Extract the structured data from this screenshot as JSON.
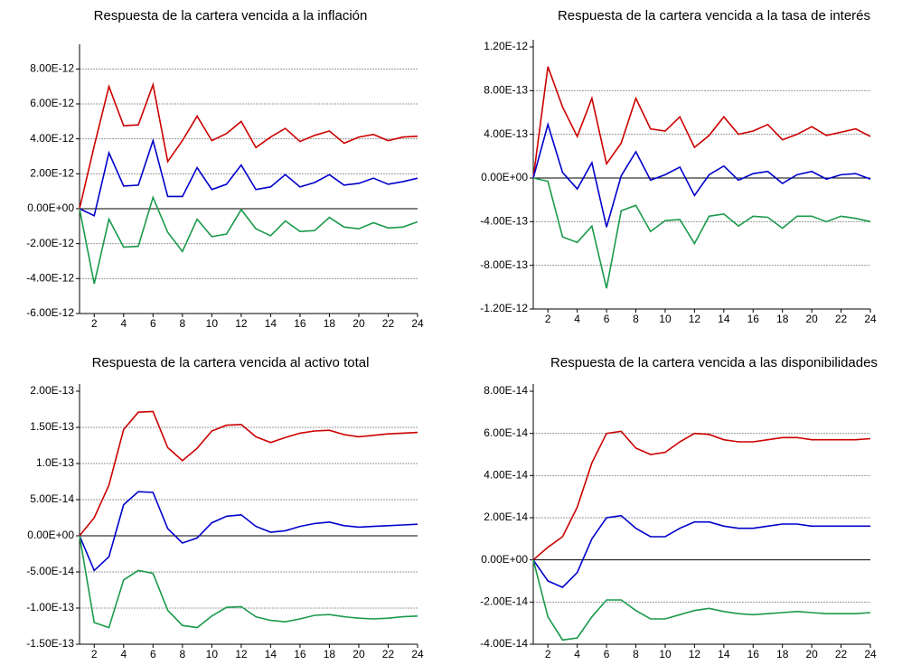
{
  "chart_data": [
    {
      "type": "line",
      "title": "Respuesta de la cartera vencida a la inflación",
      "x": [
        1,
        2,
        3,
        4,
        5,
        6,
        7,
        8,
        9,
        10,
        11,
        12,
        13,
        14,
        15,
        16,
        17,
        18,
        19,
        20,
        21,
        22,
        23,
        24
      ],
      "xlim": [
        1,
        24
      ],
      "xticks": [
        2,
        4,
        6,
        8,
        10,
        12,
        14,
        16,
        18,
        20,
        22,
        24
      ],
      "ylim": [
        -6e-12,
        9e-12
      ],
      "yticks": [
        {
          "value": -6e-12,
          "label": "-6.00E-12"
        },
        {
          "value": -4e-12,
          "label": "-4.00E-12"
        },
        {
          "value": -2e-12,
          "label": "-2.00E-12"
        },
        {
          "value": 0,
          "label": "0.00E+00"
        },
        {
          "value": 2e-12,
          "label": "2.00E-12"
        },
        {
          "value": 4e-12,
          "label": "4.00E-12"
        },
        {
          "value": 6e-12,
          "label": "6.00E-12"
        },
        {
          "value": 8e-12,
          "label": "8.00E-12"
        }
      ],
      "grid": true,
      "series": [
        {
          "color": "#cc0000",
          "values": [
            0,
            3.6e-12,
            7e-12,
            4.75e-12,
            4.8e-12,
            7.1e-12,
            2.7e-12,
            3.9e-12,
            5.3e-12,
            3.9e-12,
            4.3e-12,
            5e-12,
            3.5e-12,
            4.1e-12,
            4.6e-12,
            3.85e-12,
            4.2e-12,
            4.45e-12,
            3.75e-12,
            4.1e-12,
            4.25e-12,
            3.9e-12,
            4.1e-12,
            4.15e-12
          ]
        },
        {
          "color": "#0000cc",
          "values": [
            0,
            -4e-13,
            3.2e-12,
            1.3e-12,
            1.35e-12,
            3.9e-12,
            7e-13,
            7e-13,
            2.35e-12,
            1.1e-12,
            1.4e-12,
            2.5e-12,
            1.1e-12,
            1.25e-12,
            1.95e-12,
            1.25e-12,
            1.5e-12,
            1.95e-12,
            1.35e-12,
            1.45e-12,
            1.75e-12,
            1.4e-12,
            1.55e-12,
            1.75e-12
          ]
        },
        {
          "color": "#1a9a4a",
          "values": [
            0,
            -4.3e-12,
            -6e-13,
            -2.2e-12,
            -2.15e-12,
            6.5e-13,
            -1.35e-12,
            -2.45e-12,
            -6e-13,
            -1.6e-12,
            -1.45e-12,
            -5e-14,
            -1.15e-12,
            -1.55e-12,
            -7e-13,
            -1.3e-12,
            -1.25e-12,
            -5e-13,
            -1.05e-12,
            -1.15e-12,
            -8e-13,
            -1.1e-12,
            -1.05e-12,
            -7.5e-13
          ]
        }
      ]
    },
    {
      "type": "line",
      "title": "Respuesta de la cartera vencida a la tasa de interés",
      "x": [
        1,
        2,
        3,
        4,
        5,
        6,
        7,
        8,
        9,
        10,
        11,
        12,
        13,
        14,
        15,
        16,
        17,
        18,
        19,
        20,
        21,
        22,
        23,
        24
      ],
      "xlim": [
        1,
        24
      ],
      "xticks": [
        2,
        4,
        6,
        8,
        10,
        12,
        14,
        16,
        18,
        20,
        22,
        24
      ],
      "ylim": [
        -1.2e-12,
        1.2e-12
      ],
      "yticks": [
        {
          "value": -1.2e-12,
          "label": "-1.20E-12"
        },
        {
          "value": -8e-13,
          "label": "-8.00E-13"
        },
        {
          "value": -4e-13,
          "label": "-4.00E-13"
        },
        {
          "value": 0,
          "label": "0.00E+00"
        },
        {
          "value": 4e-13,
          "label": "4.00E-13"
        },
        {
          "value": 8e-13,
          "label": "8.00E-13"
        },
        {
          "value": 1.2e-12,
          "label": "1.20E-12"
        }
      ],
      "grid": true,
      "series": [
        {
          "color": "#cc0000",
          "values": [
            0,
            1.02e-12,
            6.5e-13,
            3.8e-13,
            7.3e-13,
            1.3e-13,
            3.2e-13,
            7.3e-13,
            4.5e-13,
            4.3e-13,
            5.6e-13,
            2.8e-13,
            3.9e-13,
            5.6e-13,
            4e-13,
            4.3e-13,
            4.9e-13,
            3.5e-13,
            4e-13,
            4.7e-13,
            3.9e-13,
            4.2e-13,
            4.5e-13,
            3.8e-13
          ]
        },
        {
          "color": "#0000cc",
          "values": [
            0,
            4.9e-13,
            5e-14,
            -1e-13,
            1.4e-13,
            -4.5e-13,
            2e-14,
            2.4e-13,
            -2e-14,
            3e-14,
            1e-13,
            -1.6e-13,
            3e-14,
            1.1e-13,
            -2e-14,
            4e-14,
            6e-14,
            -5e-14,
            3e-14,
            6e-14,
            -1e-14,
            3e-14,
            4e-14,
            -1e-14
          ]
        },
        {
          "color": "#1a9a4a",
          "values": [
            0,
            -3e-14,
            -5.4e-13,
            -5.9e-13,
            -4.4e-13,
            -1.01e-12,
            -3e-13,
            -2.5e-13,
            -4.9e-13,
            -3.9e-13,
            -3.8e-13,
            -6e-13,
            -3.5e-13,
            -3.3e-13,
            -4.4e-13,
            -3.5e-13,
            -3.6e-13,
            -4.6e-13,
            -3.5e-13,
            -3.5e-13,
            -4e-13,
            -3.5e-13,
            -3.7e-13,
            -4e-13
          ]
        }
      ]
    },
    {
      "type": "line",
      "title": "Respuesta de la cartera vencida al activo total",
      "x": [
        1,
        2,
        3,
        4,
        5,
        6,
        7,
        8,
        9,
        10,
        11,
        12,
        13,
        14,
        15,
        16,
        17,
        18,
        19,
        20,
        21,
        22,
        23,
        24
      ],
      "xlim": [
        1,
        24
      ],
      "xticks": [
        2,
        4,
        6,
        8,
        10,
        12,
        14,
        16,
        18,
        20,
        22,
        24
      ],
      "ylim": [
        -1.5e-13,
        2e-13
      ],
      "yticks": [
        {
          "value": -1.5e-13,
          "label": "-1.50E-13"
        },
        {
          "value": -1e-13,
          "label": "-1.00E-13"
        },
        {
          "value": -5e-14,
          "label": "-5.00E-14"
        },
        {
          "value": 0,
          "label": "0.00E+00"
        },
        {
          "value": 5e-14,
          "label": "5.00E-14"
        },
        {
          "value": 1e-13,
          "label": "1.0E-13"
        },
        {
          "value": 1.5e-13,
          "label": "1.50E-13"
        },
        {
          "value": 2e-13,
          "label": "2.00E-13"
        }
      ],
      "grid": true,
      "series": [
        {
          "color": "#cc0000",
          "values": [
            0,
            2.5e-14,
            7e-14,
            1.47e-13,
            1.71e-13,
            1.72e-13,
            1.22e-13,
            1.04e-13,
            1.21e-13,
            1.45e-13,
            1.53e-13,
            1.54e-13,
            1.37e-13,
            1.29e-13,
            1.36e-13,
            1.42e-13,
            1.45e-13,
            1.46e-13,
            1.4e-13,
            1.37e-13,
            1.39e-13,
            1.41e-13,
            1.42e-13,
            1.43e-13
          ]
        },
        {
          "color": "#0000cc",
          "values": [
            0,
            -4.8e-14,
            -2.9e-14,
            4.3e-14,
            6.1e-14,
            6e-14,
            1e-14,
            -1e-14,
            -3e-15,
            1.8e-14,
            2.7e-14,
            2.9e-14,
            1.3e-14,
            5e-15,
            7e-15,
            1.3e-14,
            1.7e-14,
            1.9e-14,
            1.4e-14,
            1.2e-14,
            1.3e-14,
            1.4e-14,
            1.5e-14,
            1.6e-14
          ]
        },
        {
          "color": "#1a9a4a",
          "values": [
            0,
            -1.2e-13,
            -1.27e-13,
            -6.1e-14,
            -4.8e-14,
            -5.2e-14,
            -1.03e-13,
            -1.24e-13,
            -1.27e-13,
            -1.11e-13,
            -9.9e-14,
            -9.8e-14,
            -1.12e-13,
            -1.17e-13,
            -1.19e-13,
            -1.15e-13,
            -1.1e-13,
            -1.09e-13,
            -1.12e-13,
            -1.14e-13,
            -1.15e-13,
            -1.14e-13,
            -1.12e-13,
            -1.11e-13
          ]
        }
      ]
    },
    {
      "type": "line",
      "title": "Respuesta de la cartera vencida a las disponibilidades",
      "x": [
        1,
        2,
        3,
        4,
        5,
        6,
        7,
        8,
        9,
        10,
        11,
        12,
        13,
        14,
        15,
        16,
        17,
        18,
        19,
        20,
        21,
        22,
        23,
        24
      ],
      "xlim": [
        1,
        24
      ],
      "xticks": [
        2,
        4,
        6,
        8,
        10,
        12,
        14,
        16,
        18,
        20,
        22,
        24
      ],
      "ylim": [
        -4e-14,
        8e-14
      ],
      "yticks": [
        {
          "value": -4e-14,
          "label": "-4.00E-14"
        },
        {
          "value": -2e-14,
          "label": "-2.00E-14"
        },
        {
          "value": 0,
          "label": "0.00E+00"
        },
        {
          "value": 2e-14,
          "label": "2.00E-14"
        },
        {
          "value": 4e-14,
          "label": "4.00E-14"
        },
        {
          "value": 6e-14,
          "label": "6.00E-14"
        },
        {
          "value": 8e-14,
          "label": "8.00E-14"
        }
      ],
      "grid": true,
      "series": [
        {
          "color": "#cc0000",
          "values": [
            0,
            6e-15,
            1.1e-14,
            2.5e-14,
            4.6e-14,
            6e-14,
            6.1e-14,
            5.3e-14,
            5e-14,
            5.1e-14,
            5.6e-14,
            6e-14,
            5.95e-14,
            5.7e-14,
            5.6e-14,
            5.6e-14,
            5.7e-14,
            5.8e-14,
            5.8e-14,
            5.7e-14,
            5.7e-14,
            5.7e-14,
            5.7e-14,
            5.75e-14
          ]
        },
        {
          "color": "#0000cc",
          "values": [
            0,
            -1e-14,
            -1.3e-14,
            -6e-15,
            1e-14,
            2e-14,
            2.1e-14,
            1.5e-14,
            1.1e-14,
            1.1e-14,
            1.5e-14,
            1.8e-14,
            1.8e-14,
            1.6e-14,
            1.5e-14,
            1.5e-14,
            1.6e-14,
            1.7e-14,
            1.7e-14,
            1.6e-14,
            1.6e-14,
            1.6e-14,
            1.6e-14,
            1.6e-14
          ]
        },
        {
          "color": "#1a9a4a",
          "values": [
            0,
            -2.7e-14,
            -3.8e-14,
            -3.7e-14,
            -2.7e-14,
            -1.9e-14,
            -1.9e-14,
            -2.4e-14,
            -2.8e-14,
            -2.8e-14,
            -2.6e-14,
            -2.4e-14,
            -2.3e-14,
            -2.45e-14,
            -2.55e-14,
            -2.6e-14,
            -2.55e-14,
            -2.5e-14,
            -2.45e-14,
            -2.5e-14,
            -2.55e-14,
            -2.55e-14,
            -2.55e-14,
            -2.5e-14
          ]
        }
      ]
    }
  ]
}
